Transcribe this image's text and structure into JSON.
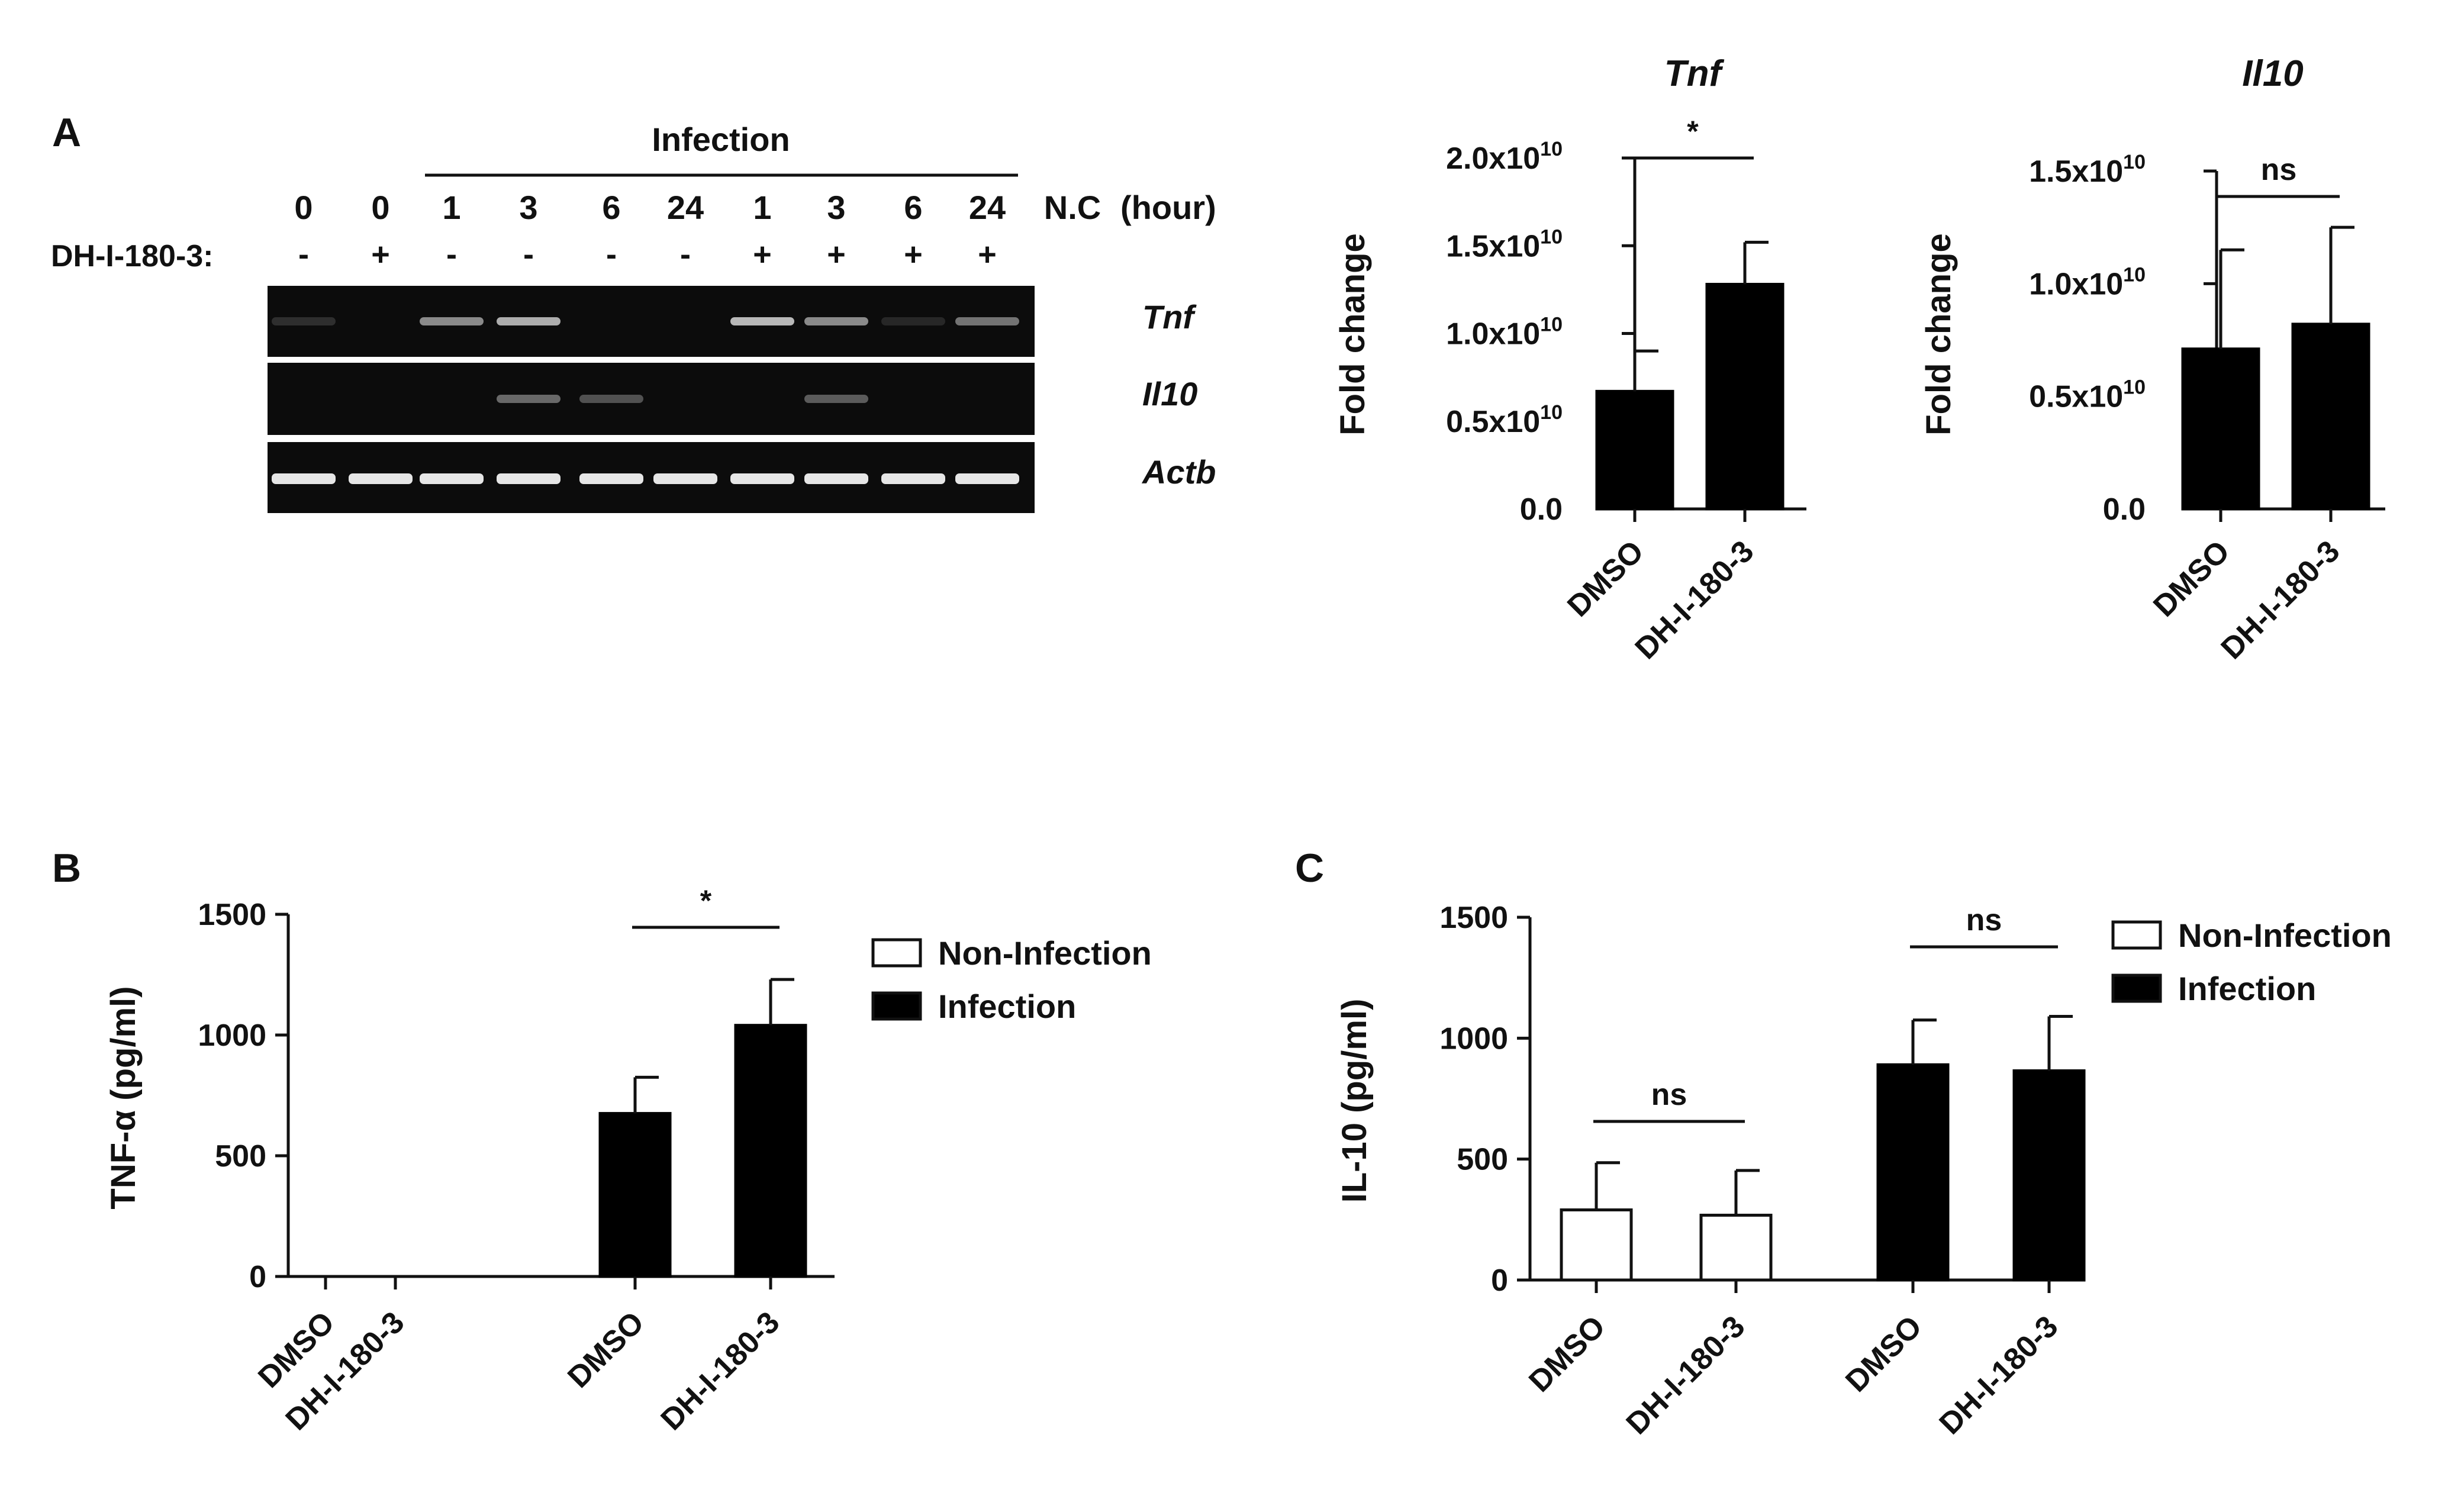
{
  "panels": {
    "a": "A",
    "b": "B",
    "c": "C"
  },
  "gel": {
    "header": "Infection",
    "hour_unit": "(hour)",
    "hour_labels": [
      "0",
      "0",
      "1",
      "3",
      "6",
      "24",
      "1",
      "3",
      "6",
      "24",
      "N.C"
    ],
    "treatment_label": "DH-I-180-3:",
    "treatment_signs": [
      "-",
      "+",
      "-",
      "-",
      "-",
      "-",
      "+",
      "+",
      "+",
      "+"
    ],
    "gene_labels": [
      "Tnf",
      "Il10",
      "Actb"
    ],
    "band_intensity": {
      "Tnf": [
        0.15,
        0.0,
        0.55,
        0.7,
        0.0,
        0.0,
        0.75,
        0.55,
        0.12,
        0.45
      ],
      "Il10": [
        0.0,
        0.0,
        0.0,
        0.4,
        0.3,
        0.0,
        0.0,
        0.35,
        0.0,
        0.0
      ],
      "Actb": [
        0.95,
        0.95,
        0.95,
        0.95,
        0.95,
        0.95,
        0.95,
        0.95,
        0.95,
        0.95
      ]
    },
    "colors": {
      "background": "#0c0c0c",
      "band": "#f2f2f2",
      "divider": "#ffffff"
    }
  },
  "chart_data": [
    {
      "id": "tnf",
      "type": "bar",
      "title": "Tnf",
      "ylabel": "Fold change",
      "categories": [
        "DMSO",
        "DH-I-180-3"
      ],
      "values": [
        6700000000.0,
        12800000000.0
      ],
      "errors": [
        2300000000.0,
        2400000000.0
      ],
      "fill": [
        "#000000",
        "#000000"
      ],
      "ylim": [
        0,
        20000000000.0
      ],
      "ticks": [
        0,
        5000000000.0,
        10000000000.0,
        15000000000.0,
        20000000000.0
      ],
      "tick_labels": [
        {
          "base": "0.0",
          "exp": ""
        },
        {
          "base": "0.5x10",
          "exp": "10"
        },
        {
          "base": "1.0x10",
          "exp": "10"
        },
        {
          "base": "1.5x10",
          "exp": "10"
        },
        {
          "base": "2.0x10",
          "exp": "10"
        }
      ],
      "significance": [
        {
          "from": 0,
          "to": 1,
          "label": "*"
        }
      ]
    },
    {
      "id": "il10_rna",
      "type": "bar",
      "title": "Il10",
      "ylabel": "Fold change",
      "categories": [
        "DMSO",
        "DH-I-180-3"
      ],
      "values": [
        7100000000.0,
        8200000000.0
      ],
      "errors": [
        4400000000.0,
        4300000000.0
      ],
      "fill": [
        "#000000",
        "#000000"
      ],
      "ylim": [
        0,
        15000000000.0
      ],
      "ticks": [
        0,
        5000000000.0,
        10000000000.0,
        15000000000.0
      ],
      "tick_labels": [
        {
          "base": "0.0",
          "exp": ""
        },
        {
          "base": "0.5x10",
          "exp": "10"
        },
        {
          "base": "1.0x10",
          "exp": "10"
        },
        {
          "base": "1.5x10",
          "exp": "10"
        }
      ],
      "significance": [
        {
          "from": 0,
          "to": 1,
          "label": "ns"
        }
      ]
    },
    {
      "id": "tnfa_protein",
      "type": "bar",
      "title": "",
      "ylabel": "TNF-α  (pg/ml)",
      "categories": [
        "DMSO",
        "DH-I-180-3",
        "DMSO",
        "DH-I-180-3"
      ],
      "values": [
        0,
        0,
        675,
        1040
      ],
      "errors": [
        0,
        0,
        150,
        190
      ],
      "fill": [
        "#ffffff",
        "#ffffff",
        "#000000",
        "#000000"
      ],
      "ylim": [
        0,
        1500
      ],
      "ticks": [
        0,
        500,
        1000,
        1500
      ],
      "tick_labels": [
        {
          "base": "0",
          "exp": ""
        },
        {
          "base": "500",
          "exp": ""
        },
        {
          "base": "1000",
          "exp": ""
        },
        {
          "base": "1500",
          "exp": ""
        }
      ],
      "legend": [
        {
          "label": "Non-Infection",
          "fill": "#ffffff"
        },
        {
          "label": "Infection",
          "fill": "#000000"
        }
      ],
      "legend_position": "right",
      "significance": [
        {
          "from": 2,
          "to": 3,
          "label": "*"
        }
      ]
    },
    {
      "id": "il10_protein",
      "type": "bar",
      "title": "",
      "ylabel": "IL-10 (pg/ml)",
      "categories": [
        "DMSO",
        "DH-I-180-3",
        "DMSO",
        "DH-I-180-3"
      ],
      "values": [
        290,
        268,
        890,
        865
      ],
      "errors": [
        195,
        185,
        185,
        225
      ],
      "fill": [
        "#ffffff",
        "#ffffff",
        "#000000",
        "#000000"
      ],
      "ylim": [
        0,
        1500
      ],
      "ticks": [
        0,
        500,
        1000,
        1500
      ],
      "tick_labels": [
        {
          "base": "0",
          "exp": ""
        },
        {
          "base": "500",
          "exp": ""
        },
        {
          "base": "1000",
          "exp": ""
        },
        {
          "base": "1500",
          "exp": ""
        }
      ],
      "legend": [
        {
          "label": "Non-Infection",
          "fill": "#ffffff"
        },
        {
          "label": "Infection",
          "fill": "#000000"
        }
      ],
      "legend_position": "right",
      "significance": [
        {
          "from": 0,
          "to": 1,
          "label": "ns"
        },
        {
          "from": 2,
          "to": 3,
          "label": "ns"
        }
      ]
    }
  ]
}
